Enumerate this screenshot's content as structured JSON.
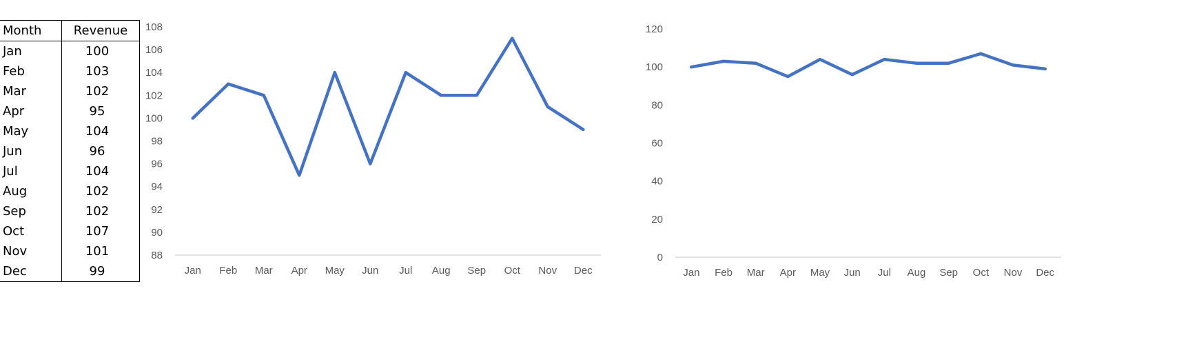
{
  "table": {
    "headers": [
      "Month",
      "Revenue"
    ],
    "rows": [
      [
        "Jan",
        "100"
      ],
      [
        "Feb",
        "103"
      ],
      [
        "Mar",
        "102"
      ],
      [
        "Apr",
        "95"
      ],
      [
        "May",
        "104"
      ],
      [
        "Jun",
        "96"
      ],
      [
        "Jul",
        "104"
      ],
      [
        "Aug",
        "102"
      ],
      [
        "Sep",
        "102"
      ],
      [
        "Oct",
        "107"
      ],
      [
        "Nov",
        "101"
      ],
      [
        "Dec",
        "99"
      ]
    ]
  },
  "chart_data": [
    {
      "type": "line",
      "categories": [
        "Jan",
        "Feb",
        "Mar",
        "Apr",
        "May",
        "Jun",
        "Jul",
        "Aug",
        "Sep",
        "Oct",
        "Nov",
        "Dec"
      ],
      "values": [
        100,
        103,
        102,
        95,
        104,
        96,
        104,
        102,
        102,
        107,
        101,
        99
      ],
      "ylim": [
        88,
        108
      ],
      "yticks": [
        88,
        90,
        92,
        94,
        96,
        98,
        100,
        102,
        104,
        106,
        108
      ],
      "grid": false,
      "line_color": "#4472C4"
    },
    {
      "type": "line",
      "categories": [
        "Jan",
        "Feb",
        "Mar",
        "Apr",
        "May",
        "Jun",
        "Jul",
        "Aug",
        "Sep",
        "Oct",
        "Nov",
        "Dec"
      ],
      "values": [
        100,
        103,
        102,
        95,
        104,
        96,
        104,
        102,
        102,
        107,
        101,
        99
      ],
      "ylim": [
        0,
        120
      ],
      "yticks": [
        0,
        20,
        40,
        60,
        80,
        100,
        120
      ],
      "grid": false,
      "line_color": "#4472C4"
    }
  ]
}
